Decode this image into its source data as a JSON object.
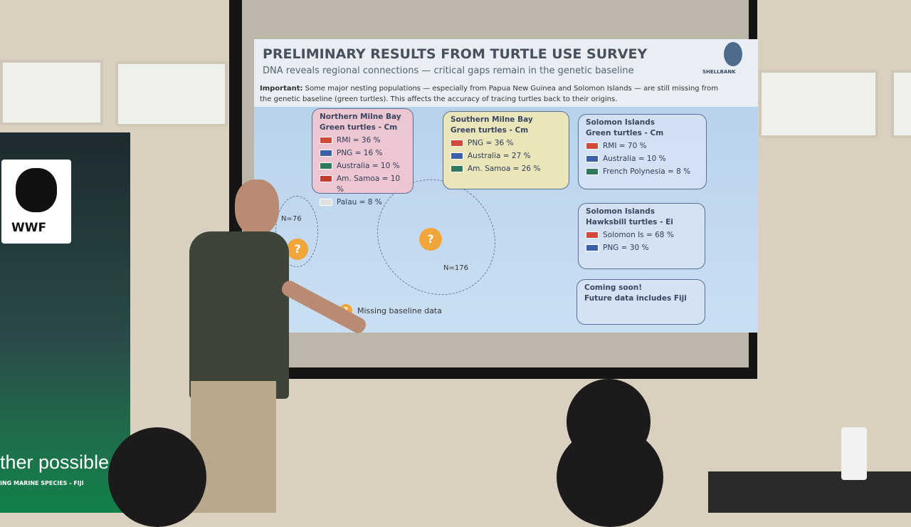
{
  "slide": {
    "title": "PRELIMINARY RESULTS FROM TURTLE USE SURVEY",
    "subtitle": "DNA reveals regional connections — critical gaps remain in the genetic baseline",
    "logo": "SHELLBANK",
    "important_label": "Important:",
    "important_text": "Some major nesting populations — especially from Papua New Guinea and Solomon Islands — are still missing from the genetic baseline (green turtles). This affects the accuracy of tracing turtles back to their origins.",
    "boxes": [
      {
        "title": [
          "Northern Milne Bay",
          "Green turtles - Cm"
        ],
        "items": [
          "RMI = 36 %",
          "PNG = 16 %",
          "Australia = 10 %",
          "Am. Samoa = 10 %",
          "Palau = 8 %"
        ]
      },
      {
        "title": [
          "Southern Milne Bay",
          "Green turtles - Cm"
        ],
        "items": [
          "PNG = 36 %",
          "Australia = 27 %",
          "Am. Samoa = 26 %"
        ]
      },
      {
        "title": [
          "Solomon Islands",
          "Green turtles - Cm"
        ],
        "items": [
          "RMI = 70 %",
          "Australia = 10 %",
          "French Polynesia = 8 %"
        ]
      },
      {
        "title": [
          "Solomon Islands",
          "Hawksbill turtles - Ei"
        ],
        "items": [
          "Solomon Is = 68 %",
          "PNG = 30 %"
        ]
      },
      {
        "title": [
          "Coming soon!",
          "Future data includes Fiji"
        ],
        "items": []
      }
    ],
    "map_labels": [
      "N=76",
      "N=176"
    ],
    "marker": "?",
    "legend": "Missing baseline data"
  },
  "banner": {
    "logo": "WWF",
    "tagline": "ther possible",
    "subline": "ING MARINE SPECIES - FIJI"
  }
}
